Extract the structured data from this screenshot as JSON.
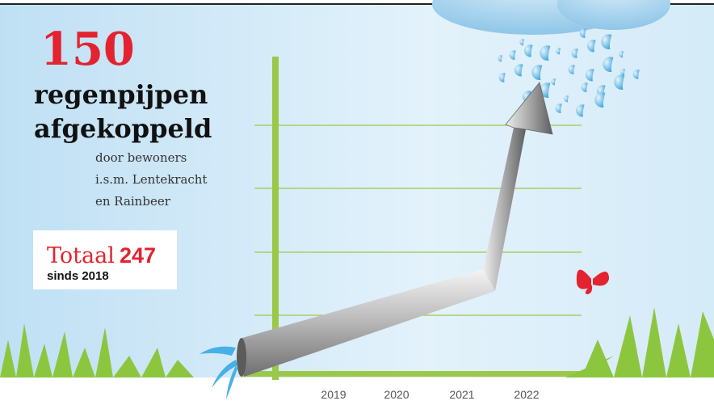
{
  "headline": {
    "number": "150",
    "lines": [
      "regenpijpen",
      "afgekoppeld"
    ]
  },
  "subtitle": [
    "door bewoners",
    "i.s.m. Lentekracht",
    "en Rainbeer"
  ],
  "total": {
    "label": "Totaal",
    "number": "247",
    "since": "sinds 2018"
  },
  "years": [
    "2019",
    "2020",
    "2021",
    "2022"
  ]
}
